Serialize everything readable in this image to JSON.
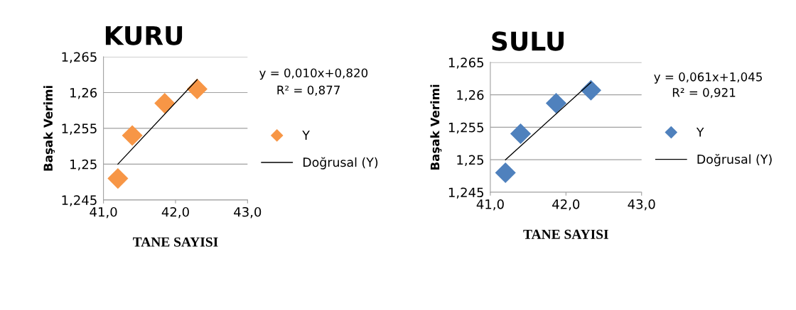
{
  "chart_data": [
    {
      "type": "scatter",
      "title": "KURU",
      "xlabel": "TANE SAYISI",
      "ylabel": "Başak Verimi",
      "xlim": [
        41.0,
        43.0
      ],
      "xticks": [
        {
          "value": 41.0,
          "label": "41,0"
        },
        {
          "value": 42.0,
          "label": "42,0"
        },
        {
          "value": 43.0,
          "label": "43,0"
        }
      ],
      "ylim": [
        1.245,
        1.265
      ],
      "yticks": [
        {
          "value": 1.245,
          "label": "1,245"
        },
        {
          "value": 1.25,
          "label": "1,25"
        },
        {
          "value": 1.255,
          "label": "1,255"
        },
        {
          "value": 1.26,
          "label": "1,26"
        },
        {
          "value": 1.265,
          "label": "1,265"
        }
      ],
      "grid": "y",
      "legend": "right",
      "marker": "diamond",
      "annotations": [
        "y = 0,010x+0,820",
        "R² = 0,877"
      ],
      "series": [
        {
          "name": "Y",
          "color": "#f79646",
          "x": [
            41.2,
            41.4,
            41.85,
            42.3
          ],
          "values": [
            1.248,
            1.254,
            1.2585,
            1.2605
          ]
        },
        {
          "name": "Doğrusal (Y)",
          "type": "line",
          "marker": "none",
          "color": "#000000",
          "x": [
            41.2,
            42.3
          ],
          "values": [
            1.25,
            1.2618
          ]
        }
      ]
    },
    {
      "type": "scatter",
      "title": "SULU",
      "xlabel": "TANE SAYISI",
      "ylabel": "Başak Verimi",
      "xlim": [
        41.0,
        43.0
      ],
      "xticks": [
        {
          "value": 41.0,
          "label": "41,0"
        },
        {
          "value": 42.0,
          "label": "42,0"
        },
        {
          "value": 43.0,
          "label": "43,0"
        }
      ],
      "ylim": [
        1.245,
        1.265
      ],
      "yticks": [
        {
          "value": 1.245,
          "label": "1,245"
        },
        {
          "value": 1.25,
          "label": "1,25"
        },
        {
          "value": 1.255,
          "label": "1,255"
        },
        {
          "value": 1.26,
          "label": "1,26"
        },
        {
          "value": 1.265,
          "label": "1,265"
        }
      ],
      "grid": "y",
      "legend": "right",
      "marker": "diamond",
      "annotations": [
        "y = 0,061x+1,045",
        "R² = 0,921"
      ],
      "series": [
        {
          "name": "Y",
          "color": "#4f81bd",
          "x": [
            41.2,
            41.4,
            41.87,
            42.33
          ],
          "values": [
            1.248,
            1.254,
            1.2587,
            1.2607
          ]
        },
        {
          "name": "Doğrusal (Y)",
          "type": "line",
          "marker": "none",
          "color": "#000000",
          "x": [
            41.2,
            42.33
          ],
          "values": [
            1.25,
            1.2619
          ]
        }
      ]
    }
  ]
}
